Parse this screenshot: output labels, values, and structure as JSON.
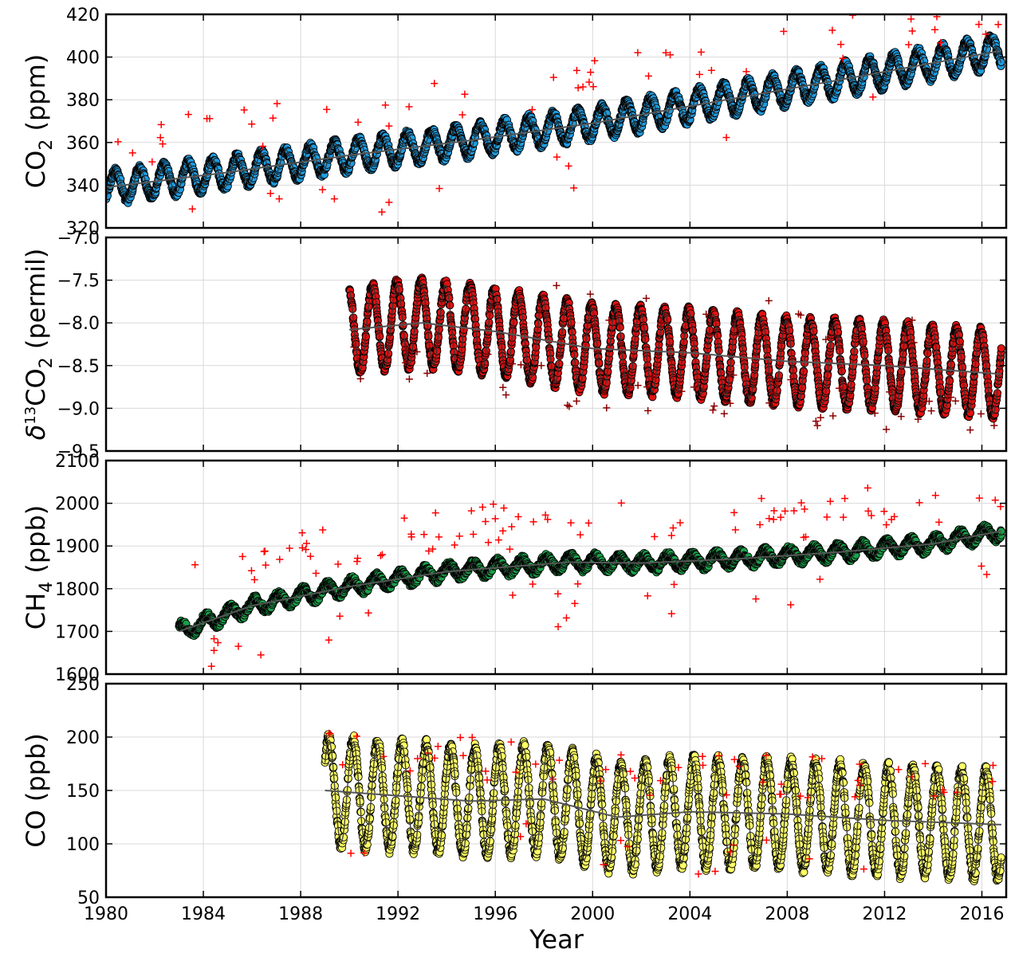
{
  "chart_data": [
    {
      "type": "scatter",
      "title": "",
      "ylabel_main": "CO",
      "ylabel_sub": "2",
      "ylabel_tail": " (ppm)",
      "ylim": [
        320,
        420
      ],
      "yticks": [
        "320",
        "340",
        "360",
        "380",
        "400",
        "420"
      ],
      "xlim": [
        1980,
        2017
      ],
      "point_color": "#1f9bde",
      "outlier_color": "#ff0000",
      "series": [
        {
          "name": "",
          "trend_x": [
            1980,
            1985,
            1990,
            1995,
            2000,
            2005,
            2010,
            2016.8
          ],
          "trend_y": [
            339,
            346,
            354,
            361,
            369,
            379,
            389,
            403
          ],
          "seasonal_amplitude": 7,
          "start": 1980,
          "end": 2016.8
        }
      ]
    },
    {
      "type": "scatter",
      "title": "",
      "ylabel_prefix": "δ",
      "ylabel_sup": "13",
      "ylabel_main": "CO",
      "ylabel_sub": "2",
      "ylabel_tail": " (permil)",
      "ylim": [
        -9.5,
        -7.0
      ],
      "yticks": [
        "−9.5",
        "−9.0",
        "−8.5",
        "−8.0",
        "−7.5",
        "−7.0"
      ],
      "xlim": [
        1980,
        2017
      ],
      "point_color": "#e01010",
      "outlier_color": "#8a0000",
      "series": [
        {
          "name": "",
          "trend_x": [
            1990,
            1993,
            1996,
            2000,
            2004,
            2008,
            2012,
            2016.8
          ],
          "trend_y": [
            -8.08,
            -8.0,
            -8.1,
            -8.3,
            -8.35,
            -8.45,
            -8.5,
            -8.6
          ],
          "seasonal_amplitude": 0.5,
          "start": 1990,
          "end": 2016.8
        }
      ]
    },
    {
      "type": "scatter",
      "title": "",
      "ylabel_main": "CH",
      "ylabel_sub": "4",
      "ylabel_tail": " (ppb)",
      "ylim": [
        1600,
        2100
      ],
      "yticks": [
        "1600",
        "1700",
        "1800",
        "1900",
        "2000",
        "2100"
      ],
      "xlim": [
        1980,
        2017
      ],
      "point_color": "#1aa04a",
      "outlier_color": "#ff0000",
      "series": [
        {
          "name": "",
          "trend_x": [
            1983,
            1986,
            1990,
            1994,
            1999,
            2002,
            2006,
            2010,
            2014,
            2016.8
          ],
          "trend_y": [
            1700,
            1760,
            1805,
            1840,
            1862,
            1860,
            1870,
            1885,
            1905,
            1935
          ],
          "seasonal_amplitude": 25,
          "start": 1983,
          "end": 2016.8
        }
      ]
    },
    {
      "type": "scatter",
      "title": "",
      "ylabel_main": "CO",
      "ylabel_sub": "",
      "ylabel_tail": " (ppb)",
      "ylim": [
        50,
        250
      ],
      "yticks": [
        "50",
        "100",
        "150",
        "200",
        "250"
      ],
      "xlim": [
        1980,
        2017
      ],
      "point_color": "#ffff66",
      "outlier_color": "#ff0000",
      "series": [
        {
          "name": "",
          "trend_x": [
            1989,
            1992,
            1995,
            1998,
            2001,
            2004,
            2008,
            2012,
            2016.8
          ],
          "trend_y": [
            150,
            145,
            140,
            142,
            125,
            130,
            128,
            122,
            118
          ],
          "seasonal_amplitude": 50,
          "start": 1989,
          "end": 2016.8
        }
      ]
    }
  ],
  "shared_x": {
    "label": "Year",
    "ticks": [
      "1980",
      "1984",
      "1988",
      "1992",
      "1996",
      "2000",
      "2004",
      "2008",
      "2012",
      "2016"
    ]
  }
}
